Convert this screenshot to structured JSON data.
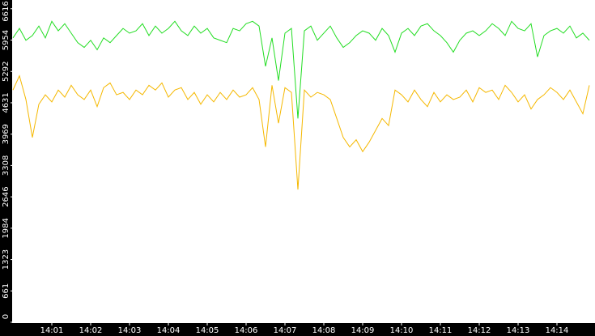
{
  "chart_data": {
    "type": "line",
    "categories": [
      null,
      null,
      null,
      null,
      null,
      null,
      "14:01",
      null,
      null,
      null,
      null,
      null,
      "14:02",
      null,
      null,
      null,
      null,
      null,
      "14:03",
      null,
      null,
      null,
      null,
      null,
      "14:04",
      null,
      null,
      null,
      null,
      null,
      "14:05",
      null,
      null,
      null,
      null,
      null,
      "14:06",
      null,
      null,
      null,
      null,
      null,
      "14:07",
      null,
      null,
      null,
      null,
      null,
      "14:08",
      null,
      null,
      null,
      null,
      null,
      "14:09",
      null,
      null,
      null,
      null,
      null,
      "14:10",
      null,
      null,
      null,
      null,
      null,
      "14:11",
      null,
      null,
      null,
      null,
      null,
      "14:12",
      null,
      null,
      null,
      null,
      null,
      "14:13",
      null,
      null,
      null,
      null,
      null,
      "14:14",
      null,
      null,
      null,
      null,
      null
    ],
    "series": [
      {
        "color": "#22dd22",
        "values": [
          6000,
          6200,
          5950,
          6050,
          6250,
          6000,
          6350,
          6150,
          6300,
          6100,
          5900,
          5800,
          5950,
          5750,
          6000,
          5900,
          6050,
          6200,
          6100,
          6150,
          6300,
          6050,
          6250,
          6100,
          6200,
          6350,
          6150,
          6050,
          6250,
          6100,
          6200,
          6000,
          5950,
          5900,
          6200,
          6150,
          6300,
          6350,
          6250,
          5400,
          6000,
          5100,
          6100,
          6200,
          4300,
          6150,
          6250,
          5950,
          6100,
          6250,
          6000,
          5800,
          5900,
          6050,
          6150,
          6100,
          5950,
          6200,
          6050,
          5700,
          6100,
          6200,
          6050,
          6250,
          6300,
          6150,
          6050,
          5900,
          5700,
          5950,
          6100,
          6150,
          6050,
          6150,
          6300,
          6200,
          6050,
          6350,
          6200,
          6150,
          6300,
          5600,
          6050,
          6150,
          6200,
          6100,
          6250,
          6000,
          6100,
          5950
        ]
      },
      {
        "color": "#f5b800",
        "values": [
          4900,
          5200,
          4700,
          3900,
          4600,
          4800,
          4650,
          4900,
          4750,
          5000,
          4800,
          4700,
          4900,
          4550,
          4950,
          5050,
          4800,
          4850,
          4700,
          4900,
          4800,
          5000,
          4900,
          5050,
          4750,
          4900,
          4950,
          4700,
          4850,
          4600,
          4800,
          4650,
          4850,
          4700,
          4900,
          4750,
          4800,
          4950,
          4700,
          3700,
          5000,
          4200,
          4950,
          4850,
          2800,
          4900,
          4750,
          4850,
          4800,
          4700,
          4300,
          3900,
          3700,
          3850,
          3600,
          3800,
          4050,
          4300,
          4150,
          4900,
          4800,
          4650,
          4900,
          4700,
          4550,
          4850,
          4650,
          4800,
          4700,
          4750,
          4900,
          4650,
          4950,
          4850,
          4900,
          4700,
          5000,
          4850,
          4650,
          4800,
          4500,
          4700,
          4800,
          4950,
          4850,
          4700,
          4900,
          4650,
          4400,
          5000
        ]
      }
    ],
    "ylim": [
      0,
      6800
    ],
    "yticks": [
      0,
      661,
      1323,
      1984,
      2646,
      3308,
      3969,
      4631,
      5292,
      5954,
      6616
    ]
  }
}
